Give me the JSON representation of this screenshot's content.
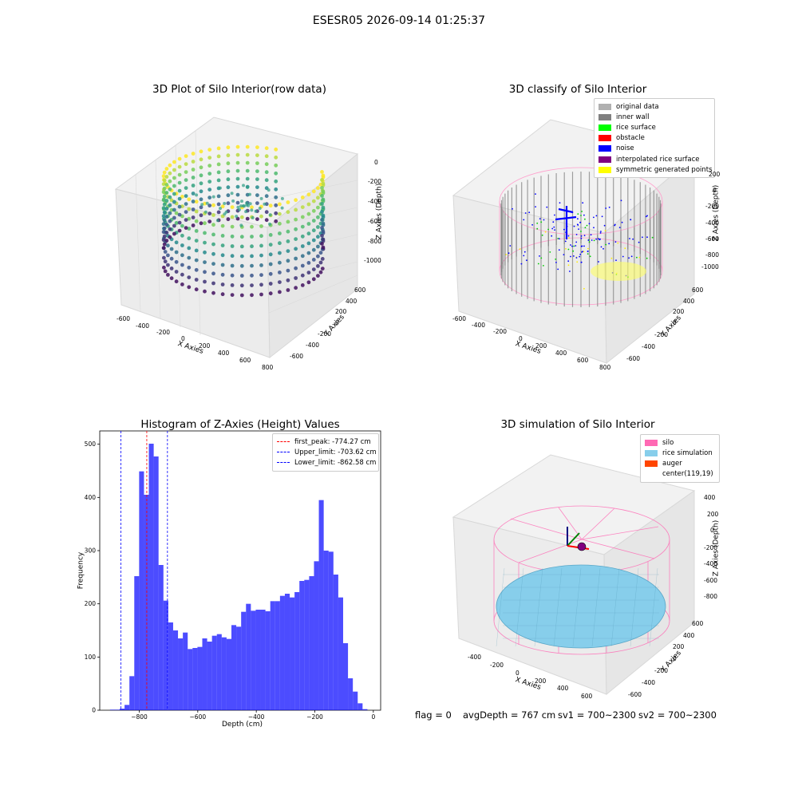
{
  "figure_title": "ESESR05 2026-09-14 01:25:37",
  "panels": {
    "raw": {
      "title": "3D Plot of Silo Interior(row data)",
      "x_ticks": [
        "-600",
        "-400",
        "-200",
        "0",
        "200",
        "400",
        "600",
        "800"
      ],
      "y_ticks": [
        "-600",
        "-400",
        "-200",
        "0",
        "200",
        "400",
        "600"
      ],
      "z_ticks": [
        "0",
        "-200",
        "-400",
        "-600",
        "-800",
        "-1000"
      ],
      "x_label": "X Axies",
      "y_label": "Y Axies",
      "z_label": "Z Axies (Depth)"
    },
    "classify": {
      "title": "3D classify of Silo Interior",
      "x_ticks": [
        "-600",
        "-400",
        "-200",
        "0",
        "200",
        "400",
        "600",
        "800"
      ],
      "y_ticks": [
        "-600",
        "-400",
        "-200",
        "0",
        "200",
        "400",
        "600"
      ],
      "z_ticks": [
        "200",
        "0",
        "-200",
        "-400",
        "-600",
        "-800",
        "-1000"
      ],
      "x_label": "X Axies",
      "y_label": "Y Axies",
      "z_label": "Z Axies (Depth)",
      "legend": [
        {
          "label": "original data",
          "color": "#b0b0b0"
        },
        {
          "label": "inner wall",
          "color": "#808080"
        },
        {
          "label": "rice surface",
          "color": "#00ff00"
        },
        {
          "label": "obstacle",
          "color": "#ff0000"
        },
        {
          "label": "noise",
          "color": "#0000ff"
        },
        {
          "label": "interpolated rice surface",
          "color": "#800080"
        },
        {
          "label": "symmetric generated points",
          "color": "#ffff00"
        }
      ]
    },
    "simulation": {
      "title": "3D simulation of Silo Interior",
      "x_ticks": [
        "-400",
        "-200",
        "0",
        "200",
        "400",
        "600"
      ],
      "y_ticks": [
        "-600",
        "-400",
        "-200",
        "0",
        "200",
        "400",
        "600"
      ],
      "z_ticks": [
        "400",
        "200",
        "0",
        "-200",
        "-400",
        "-600",
        "-800"
      ],
      "x_label": "X Axies",
      "y_label": "Y Axies",
      "z_label": "Z Axies (Depth)",
      "legend": [
        {
          "label": "silo",
          "color": "#ff69b4"
        },
        {
          "label": "rice simulation",
          "color": "#87ceeb"
        },
        {
          "label": "auger",
          "color": "#ff4500"
        },
        {
          "label": "center(119,19)",
          "color": "#ffffff"
        }
      ],
      "status": {
        "flag": "flag = 0",
        "avg_depth": "avgDepth = 767 cm",
        "sv1": "sv1 = 700~2300",
        "sv2": "sv2 = 700~2300"
      }
    }
  },
  "chart_data": {
    "type": "bar",
    "title": "Histogram of Z-Axies (Height) Values",
    "xlabel": "Depth (cm)",
    "ylabel": "Frequency",
    "xlim": [
      -935,
      25
    ],
    "ylim": [
      0,
      525
    ],
    "x_ticks": [
      -800,
      -600,
      -400,
      -200,
      0
    ],
    "y_ticks": [
      0,
      100,
      200,
      300,
      400,
      500
    ],
    "bar_color": "#0000ff",
    "bar_alpha": 0.7,
    "bin_width": 16.6,
    "bin_starts": [
      -900.0,
      -883.4,
      -866.8,
      -850.2,
      -833.6,
      -817.0,
      -800.4,
      -783.8,
      -767.2,
      -750.6,
      -734.0,
      -717.4,
      -700.8,
      -684.2,
      -667.6,
      -651.0,
      -634.4,
      -617.8,
      -601.2,
      -584.6,
      -568.0,
      -551.4,
      -534.8,
      -518.2,
      -501.6,
      -485.0,
      -468.4,
      -451.8,
      -435.2,
      -418.6,
      -402.0,
      -385.4,
      -368.8,
      -352.2,
      -335.6,
      -319.0,
      -302.4,
      -285.8,
      -269.2,
      -252.6,
      -236.0,
      -219.4,
      -202.8,
      -186.2,
      -169.6,
      -153.0,
      -136.4,
      -119.8,
      -103.2,
      -86.6,
      -70.0,
      -53.4,
      -36.8,
      -20.2
    ],
    "values": [
      1,
      1,
      3,
      10,
      64,
      252,
      449,
      405,
      501,
      477,
      273,
      206,
      165,
      150,
      135,
      146,
      115,
      117,
      119,
      135,
      129,
      140,
      143,
      137,
      134,
      160,
      157,
      185,
      200,
      187,
      189,
      189,
      186,
      205,
      205,
      215,
      219,
      212,
      222,
      243,
      245,
      252,
      280,
      395,
      300,
      298,
      255,
      212,
      126,
      60,
      35,
      13,
      2,
      0
    ],
    "vlines": [
      {
        "label": "first_peak: -774.27 cm",
        "x": -774.27,
        "color": "#ff0000"
      },
      {
        "label": "Upper_limit: -703.62 cm",
        "x": -703.62,
        "color": "#0000ff"
      },
      {
        "label": "Lower_limit: -862.58 cm",
        "x": -862.58,
        "color": "#0000ff"
      }
    ],
    "legend_position": "upper right"
  }
}
